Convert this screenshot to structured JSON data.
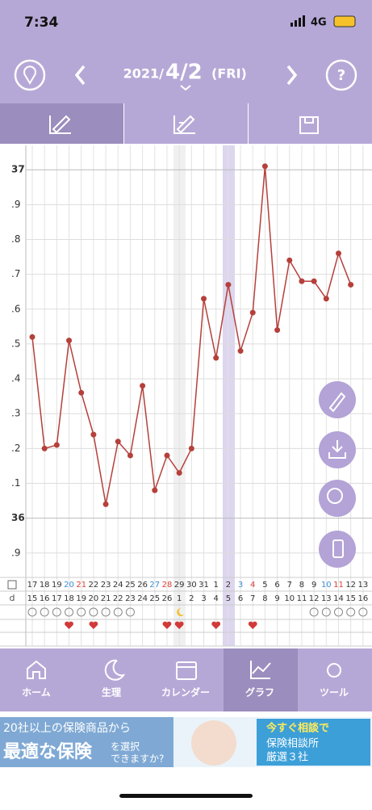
{
  "status_bar": {
    "time": "7:34",
    "network": "4G"
  },
  "header": {
    "year": "2021/",
    "date": "4/2",
    "weekday": "(FRI)"
  },
  "chart_data": {
    "type": "line",
    "categories": [
      "17",
      "18",
      "19",
      "20",
      "21",
      "22",
      "23",
      "24",
      "25",
      "26",
      "27",
      "28",
      "29",
      "30",
      "31",
      "1",
      "2",
      "3",
      "4",
      "5",
      "6",
      "7",
      "8",
      "9",
      "10",
      "11",
      "12",
      "13"
    ],
    "category_colors": [
      "#333",
      "#333",
      "#333",
      "#3a8fd0",
      "#d9413a",
      "#333",
      "#333",
      "#333",
      "#333",
      "#333",
      "#3a8fd0",
      "#d9413a",
      "#333",
      "#333",
      "#333",
      "#333",
      "#333",
      "#3a8fd0",
      "#d9413a",
      "#333",
      "#333",
      "#333",
      "#333",
      "#333",
      "#3a8fd0",
      "#d9413a",
      "#333",
      "#333"
    ],
    "cycle_days": [
      15,
      16,
      17,
      18,
      19,
      20,
      21,
      22,
      23,
      24,
      25,
      26,
      1,
      2,
      3,
      4,
      5,
      6,
      7,
      8,
      9,
      10,
      11,
      12,
      13,
      14,
      15,
      16
    ],
    "values": [
      36.52,
      36.2,
      36.21,
      36.51,
      36.36,
      36.24,
      36.04,
      36.22,
      36.18,
      36.38,
      36.08,
      36.18,
      36.13,
      36.2,
      36.63,
      36.46,
      36.67,
      36.48,
      36.59,
      37.01,
      36.54,
      36.74,
      36.68,
      36.68,
      36.63,
      36.76,
      36.67,
      null
    ],
    "color": "#b5403b",
    "ylim": [
      35.83,
      37.07
    ],
    "yticks": [
      {
        "value": 35.9,
        "label": ".9"
      },
      36,
      {
        "value": 36.1,
        "label": ".1"
      },
      {
        "value": 36.2,
        "label": ".2"
      },
      {
        "value": 36.3,
        "label": ".3"
      },
      {
        "value": 36.4,
        "label": ".4"
      },
      {
        "value": 36.5,
        "label": ".5"
      },
      {
        "value": 36.6,
        "label": ".6"
      },
      {
        "value": 36.7,
        "label": ".7"
      },
      {
        "value": 36.8,
        "label": ".8"
      },
      {
        "value": 36.9,
        "label": ".9"
      },
      37
    ],
    "grid": true,
    "cycle_label": "d"
  },
  "nav": [
    "ホーム",
    "生理",
    "カレンダー",
    "グラフ",
    "ツール"
  ],
  "ad": {
    "line1": "20社以上の保険商品から",
    "big": "最適な保険",
    "small1": "を選択",
    "small2": "できますか?",
    "right1": "今すぐ相談で",
    "right2": "保険相談所",
    "right3": "厳選３社"
  }
}
